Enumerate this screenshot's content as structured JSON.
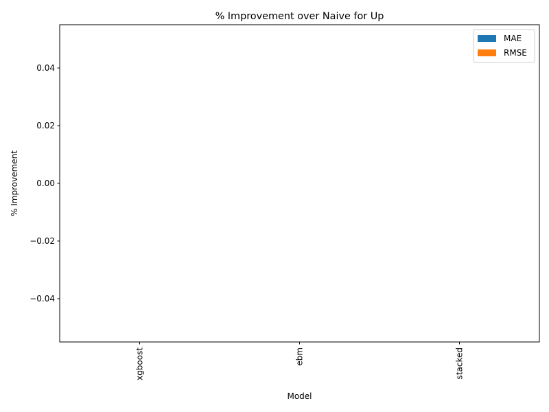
{
  "chart_data": {
    "type": "bar",
    "title": "% Improvement over Naive for Up",
    "xlabel": "Model",
    "ylabel": "% Improvement",
    "categories": [
      "xgboost",
      "ebm",
      "stacked"
    ],
    "series": [
      {
        "name": "MAE",
        "values": [
          0,
          0,
          0
        ],
        "color": "#1f77b4"
      },
      {
        "name": "RMSE",
        "values": [
          0,
          0,
          0
        ],
        "color": "#ff7f0e"
      }
    ],
    "ylim": [
      -0.055,
      0.055
    ],
    "yticks": [
      -0.04,
      -0.02,
      0.0,
      0.02,
      0.04
    ],
    "ytick_labels": [
      "−0.04",
      "−0.02",
      "0.00",
      "0.02",
      "0.04"
    ],
    "grid": false,
    "legend_position": "top-right"
  }
}
